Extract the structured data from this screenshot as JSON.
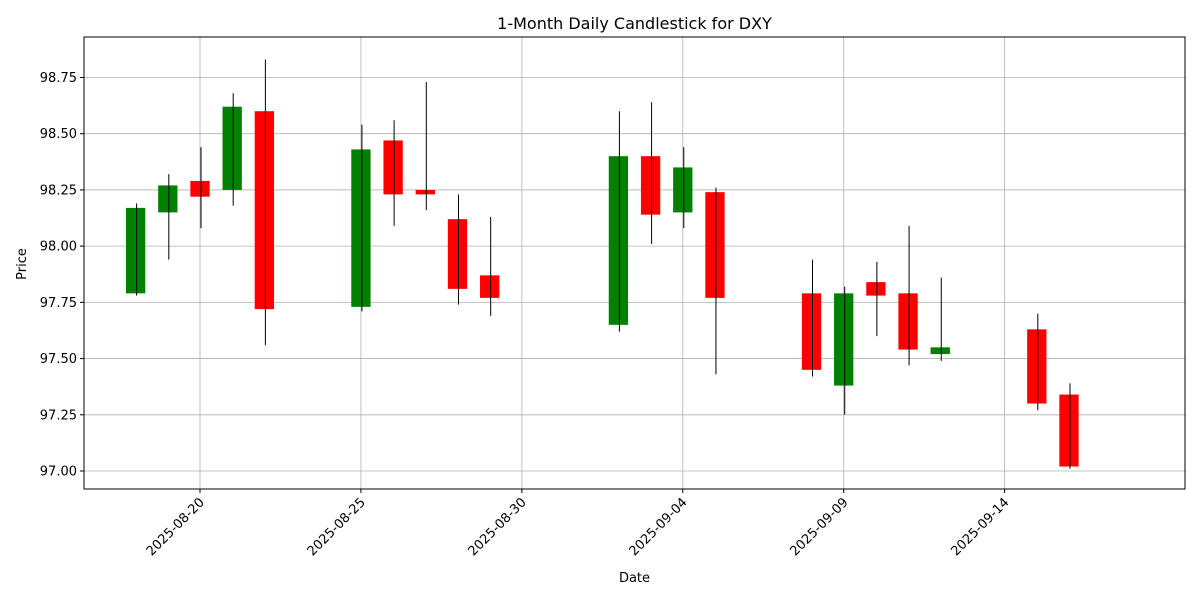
{
  "chart_data": {
    "type": "candlestick",
    "title": "1-Month Daily Candlestick for DXY",
    "xlabel": "Date",
    "ylabel": "Price",
    "ylim": [
      96.92,
      98.93
    ],
    "xlim": [
      "2025-08-16T09:30",
      "2025-09-19T14:30"
    ],
    "yticks": [
      "97.00",
      "97.25",
      "97.50",
      "97.75",
      "98.00",
      "98.25",
      "98.50",
      "98.75"
    ],
    "xticks": [
      "2025-08-20",
      "2025-08-25",
      "2025-08-30",
      "2025-09-04",
      "2025-09-09",
      "2025-09-14"
    ],
    "grid": true,
    "up_color": "#008000",
    "down_color": "#ff0000",
    "wick_color": "#000000",
    "candles": [
      {
        "date": "2025-08-18",
        "open": 97.79,
        "high": 98.19,
        "low": 97.78,
        "close": 98.17
      },
      {
        "date": "2025-08-19",
        "open": 98.15,
        "high": 98.32,
        "low": 97.94,
        "close": 98.27
      },
      {
        "date": "2025-08-20",
        "open": 98.29,
        "high": 98.44,
        "low": 98.08,
        "close": 98.22
      },
      {
        "date": "2025-08-21",
        "open": 98.25,
        "high": 98.68,
        "low": 98.18,
        "close": 98.62
      },
      {
        "date": "2025-08-22",
        "open": 98.6,
        "high": 98.83,
        "low": 97.56,
        "close": 97.72
      },
      {
        "date": "2025-08-25",
        "open": 97.73,
        "high": 98.54,
        "low": 97.71,
        "close": 98.43
      },
      {
        "date": "2025-08-26",
        "open": 98.47,
        "high": 98.56,
        "low": 98.09,
        "close": 98.23
      },
      {
        "date": "2025-08-27",
        "open": 98.25,
        "high": 98.73,
        "low": 98.16,
        "close": 98.23
      },
      {
        "date": "2025-08-28",
        "open": 98.12,
        "high": 98.23,
        "low": 97.74,
        "close": 97.81
      },
      {
        "date": "2025-08-29",
        "open": 97.87,
        "high": 98.13,
        "low": 97.69,
        "close": 97.77
      },
      {
        "date": "2025-09-02",
        "open": 97.65,
        "high": 98.6,
        "low": 97.62,
        "close": 98.4
      },
      {
        "date": "2025-09-03",
        "open": 98.4,
        "high": 98.64,
        "low": 98.01,
        "close": 98.14
      },
      {
        "date": "2025-09-04",
        "open": 98.15,
        "high": 98.44,
        "low": 98.08,
        "close": 98.35
      },
      {
        "date": "2025-09-05",
        "open": 98.24,
        "high": 98.26,
        "low": 97.43,
        "close": 97.77
      },
      {
        "date": "2025-09-08",
        "open": 97.79,
        "high": 97.94,
        "low": 97.42,
        "close": 97.45
      },
      {
        "date": "2025-09-09",
        "open": 97.38,
        "high": 97.82,
        "low": 97.25,
        "close": 97.79
      },
      {
        "date": "2025-09-10",
        "open": 97.84,
        "high": 97.93,
        "low": 97.6,
        "close": 97.78
      },
      {
        "date": "2025-09-11",
        "open": 97.79,
        "high": 98.09,
        "low": 97.47,
        "close": 97.54
      },
      {
        "date": "2025-09-12",
        "open": 97.52,
        "high": 97.86,
        "low": 97.49,
        "close": 97.55
      },
      {
        "date": "2025-09-15",
        "open": 97.63,
        "high": 97.7,
        "low": 97.27,
        "close": 97.3
      },
      {
        "date": "2025-09-16",
        "open": 97.34,
        "high": 97.39,
        "low": 97.01,
        "close": 97.02
      }
    ]
  }
}
